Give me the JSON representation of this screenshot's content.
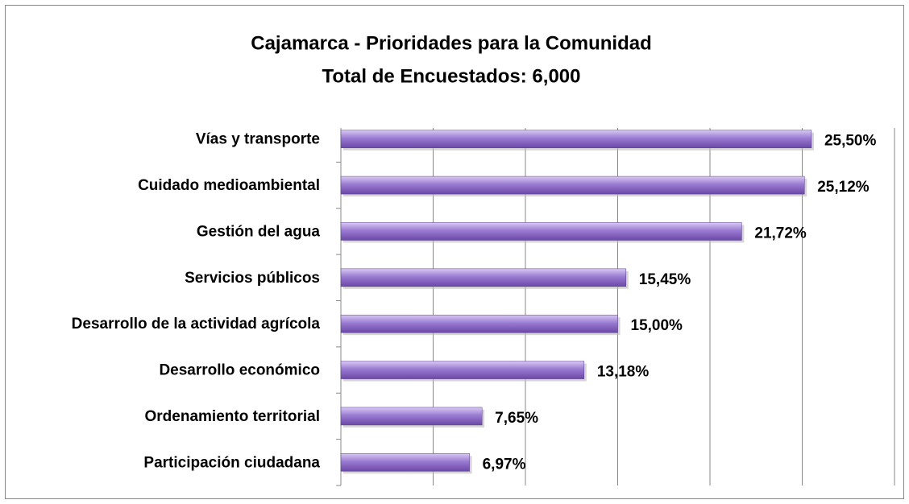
{
  "chart_data": {
    "type": "bar",
    "orientation": "horizontal",
    "title": "Cajamarca - Prioridades para la Comunidad",
    "subtitle": "Total de Encuestados: 6,000",
    "categories": [
      "Vías y transporte",
      "Cuidado medioambiental",
      "Gestión del agua",
      "Servicios públicos",
      "Desarrollo de la actividad agrícola",
      "Desarrollo económico",
      "Ordenamiento territorial",
      "Participación ciudadana"
    ],
    "values": [
      25.5,
      25.12,
      21.72,
      15.45,
      15.0,
      13.18,
      7.65,
      6.97
    ],
    "value_labels": [
      "25,50%",
      "25,12%",
      "21,72%",
      "15,45%",
      "15,00%",
      "13,18%",
      "7,65%",
      "6,97%"
    ],
    "color": "#8e6cc8",
    "xlim": [
      0,
      30
    ],
    "xticks": [
      0,
      5,
      10,
      15,
      20,
      25,
      30
    ],
    "grid": true
  }
}
